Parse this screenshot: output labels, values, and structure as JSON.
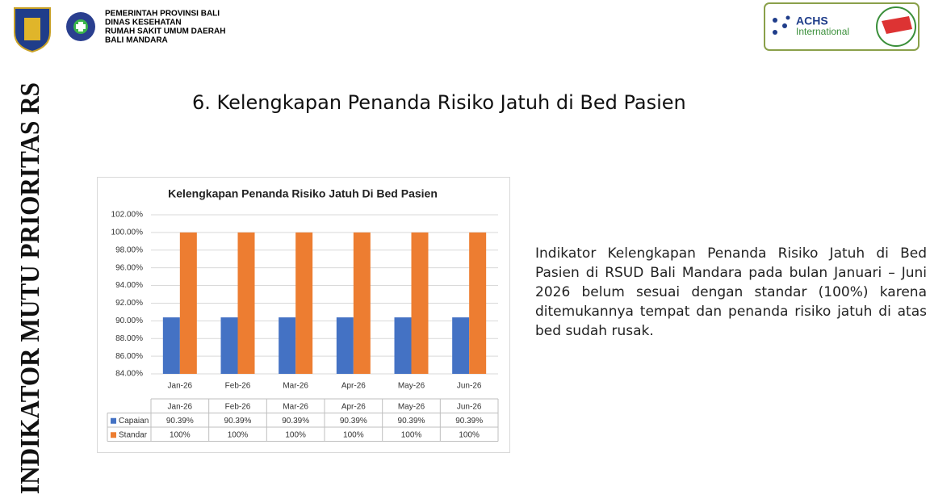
{
  "header": {
    "lines": [
      "PEMERINTAH PROVINSI BALI",
      "DINAS KESEHATAN",
      "RUMAH SAKIT UMUM DAERAH",
      "BALI MANDARA"
    ],
    "badge": [
      "ACHS",
      "International"
    ]
  },
  "side_label": "INDIKATOR MUTU PRIORITAS RS",
  "slide_title": "6. Kelengkapan Penanda Risiko Jatuh di Bed Pasien",
  "description": "Indikator Kelengkapan Penanda Risiko Jatuh di Bed Pasien di RSUD Bali Mandara pada bulan Januari – Juni 2026 belum sesuai dengan standar (100%) karena ditemukannya tempat dan penanda risiko jatuh di atas bed sudah rusak.",
  "chart_data": {
    "type": "bar",
    "title": "Kelengkapan Penanda Risiko Jatuh Di Bed Pasien",
    "categories": [
      "Jan-26",
      "Feb-26",
      "Mar-26",
      "Apr-26",
      "May-26",
      "Jun-26"
    ],
    "series": [
      {
        "name": "Capaian",
        "color": "#4472c4",
        "values": [
          90.39,
          90.39,
          90.39,
          90.39,
          90.39,
          90.39
        ],
        "value_labels": [
          "90.39%",
          "90.39%",
          "90.39%",
          "90.39%",
          "90.39%",
          "90.39%"
        ]
      },
      {
        "name": "Standar",
        "color": "#ed7d31",
        "values": [
          100,
          100,
          100,
          100,
          100,
          100
        ],
        "value_labels": [
          "100%",
          "100%",
          "100%",
          "100%",
          "100%",
          "100%"
        ]
      }
    ],
    "ylim": [
      84,
      102
    ],
    "yticks": [
      {
        "value": 84,
        "label": "84.00%"
      },
      {
        "value": 86,
        "label": "86.00%"
      },
      {
        "value": 88,
        "label": "88.00%"
      },
      {
        "value": 90,
        "label": "90.00%"
      },
      {
        "value": 92,
        "label": "92.00%"
      },
      {
        "value": 94,
        "label": "94.00%"
      },
      {
        "value": 96,
        "label": "96.00%"
      },
      {
        "value": 98,
        "label": "98.00%"
      },
      {
        "value": 100,
        "label": "100.00%"
      },
      {
        "value": 102,
        "label": "102.00%"
      }
    ],
    "grid": true
  }
}
